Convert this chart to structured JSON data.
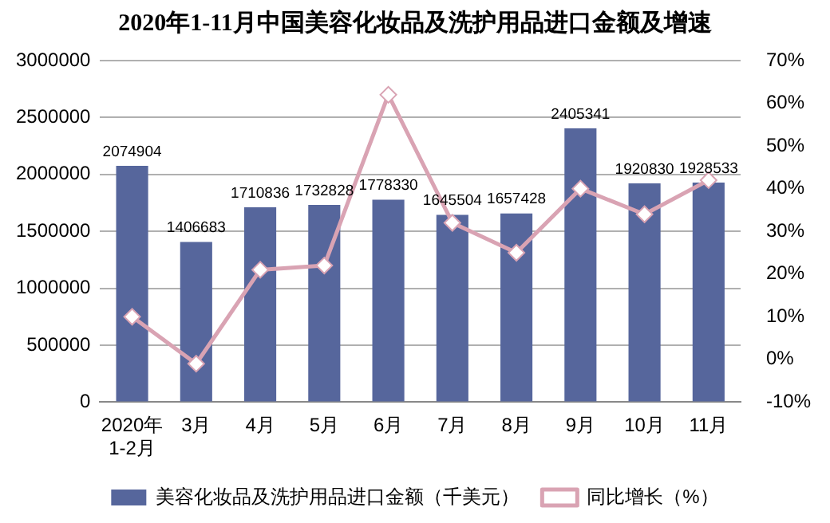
{
  "chart_data": {
    "type": "bar",
    "title": "2020年1-11月中国美容化妆品及洗护用品进口金额及增速",
    "categories": [
      "2020年\n1-2月",
      "3月",
      "4月",
      "5月",
      "6月",
      "7月",
      "8月",
      "9月",
      "10月",
      "11月"
    ],
    "series": [
      {
        "name": "美容化妆品及洗护用品进口金额（千美元）",
        "color": "#56669c",
        "values": [
          2074904,
          1406683,
          1710836,
          1732828,
          1778330,
          1645504,
          1657428,
          2405341,
          1920830,
          1928533
        ],
        "value_labels": [
          "2074904",
          "1406683",
          "1710836",
          "1732828",
          "1778330",
          "1645504",
          "1657428",
          "2405341",
          "1920830",
          "1928533"
        ]
      },
      {
        "name": "同比增长（%）",
        "type": "line",
        "axis": "y2",
        "color": "#d9a3b3",
        "marker": "diamond",
        "values": [
          10,
          -1,
          21,
          22,
          62,
          32,
          25,
          40,
          34,
          42
        ]
      }
    ],
    "ylim": [
      0,
      3000000
    ],
    "yticks": [
      0,
      500000,
      1000000,
      1500000,
      2000000,
      2500000,
      3000000
    ],
    "y2lim": [
      -10,
      70
    ],
    "y2ticks": [
      {
        "value": -10,
        "label": "-10%"
      },
      {
        "value": 0,
        "label": "0%"
      },
      {
        "value": 10,
        "label": "10%"
      },
      {
        "value": 20,
        "label": "20%"
      },
      {
        "value": 30,
        "label": "30%"
      },
      {
        "value": 40,
        "label": "40%"
      },
      {
        "value": 50,
        "label": "50%"
      },
      {
        "value": 60,
        "label": "60%"
      },
      {
        "value": 70,
        "label": "70%"
      }
    ],
    "grid": "y",
    "legend": "bottom"
  }
}
